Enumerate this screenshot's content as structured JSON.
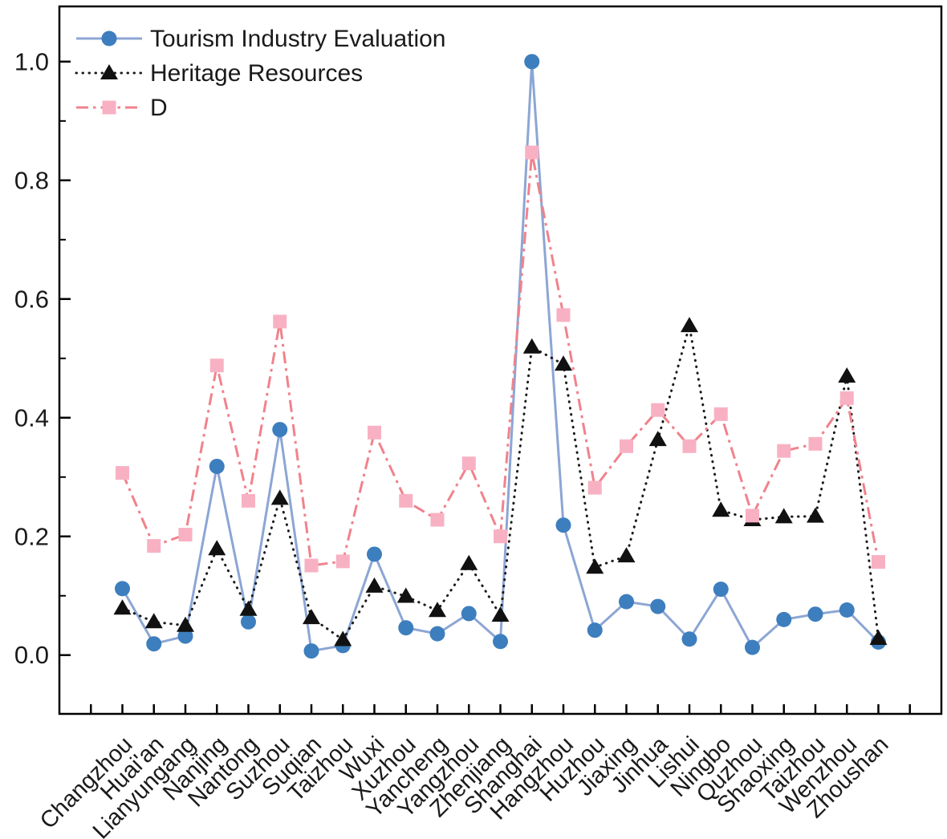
{
  "figure": {
    "background": "#ffffff",
    "axis_color": "#000000",
    "text_color": "#1a1a1a"
  },
  "chart_data": {
    "type": "line",
    "title": "",
    "xlabel": "",
    "ylabel": "",
    "grid": false,
    "legend_position": "top-left",
    "categories": [
      "Changzhou",
      "Huai'an",
      "Lianyungang",
      "Nanjing",
      "Nantong",
      "Suzhou",
      "Suqian",
      "Taizhou",
      "Wuxi",
      "Xuzhou",
      "Yancheng",
      "Yangzhou",
      "Zhenjiang",
      "Shanghai",
      "Hangzhou",
      "Huzhou",
      "Jiaxing",
      "Jinhua",
      "Lishui",
      "Ningbo",
      "Quzhou",
      "Shaoxing",
      "Taizhou",
      "Wenzhou",
      "Zhoushan"
    ],
    "series": [
      {
        "name": "Tourism Industry Evaluation",
        "line_color": "#8CA6D4",
        "marker": "circle",
        "marker_color": "#3D7EBE",
        "line_style": "solid",
        "values": [
          0.112,
          0.019,
          0.032,
          0.318,
          0.056,
          0.38,
          0.007,
          0.016,
          0.17,
          0.046,
          0.036,
          0.07,
          0.023,
          1.0,
          0.219,
          0.042,
          0.09,
          0.082,
          0.027,
          0.111,
          0.013,
          0.06,
          0.069,
          0.076,
          0.022
        ]
      },
      {
        "name": "Heritage Resources",
        "line_color": "#1a1a1a",
        "marker": "triangle",
        "marker_color": "#111111",
        "line_style": "dotted",
        "values": [
          0.079,
          0.056,
          0.05,
          0.179,
          0.077,
          0.264,
          0.063,
          0.026,
          0.116,
          0.099,
          0.075,
          0.154,
          0.067,
          0.519,
          0.49,
          0.148,
          0.167,
          0.363,
          0.555,
          0.244,
          0.228,
          0.233,
          0.234,
          0.47,
          0.028
        ]
      },
      {
        "name": "D",
        "line_color": "#F0828C",
        "marker": "square",
        "marker_color": "#F8B1C3",
        "line_style": "dashdot",
        "values": [
          0.307,
          0.184,
          0.203,
          0.488,
          0.26,
          0.562,
          0.151,
          0.158,
          0.375,
          0.26,
          0.228,
          0.323,
          0.2,
          0.847,
          0.573,
          0.282,
          0.352,
          0.413,
          0.352,
          0.406,
          0.235,
          0.344,
          0.356,
          0.433,
          0.157
        ]
      }
    ],
    "ylim": [
      -0.099,
      1.093
    ],
    "xlim": [
      -2,
      26
    ],
    "yticks": [
      0.0,
      0.2,
      0.4,
      0.6,
      0.8,
      1.0
    ],
    "ytick_labels": [
      "0.0",
      "0.2",
      "0.4",
      "0.6",
      "0.8",
      "1.0"
    ],
    "minor_yticks": [
      0.1,
      0.3,
      0.5,
      0.7,
      0.9
    ]
  }
}
